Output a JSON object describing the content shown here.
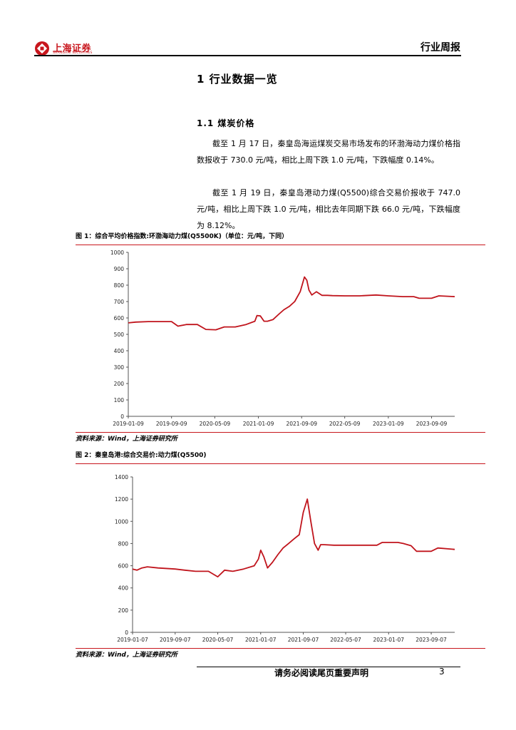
{
  "header": {
    "logo_cn": "上海证券",
    "logo_en": "SHANGHAI SECURITIES",
    "report_type": "行业周报"
  },
  "section": {
    "title": "1  行业数据一览",
    "subtitle": "1.1  煤炭价格"
  },
  "paragraphs": [
    "截至 1 月 17 日，秦皇岛海运煤炭交易市场发布的环渤海动力煤价格指数报收于 730.0 元/吨，相比上周下跌 1.0 元/吨，下跌幅度 0.14%。",
    "截至 1 月 19 日，秦皇岛港动力煤(Q5500)综合交易价报收于 747.0 元/吨，相比上周下跌 1.0 元/吨，相比去年同期下跌 66.0 元/吨，下跌幅度为 8.12%。"
  ],
  "figures": [
    {
      "title": "图 1：综合平均价格指数:环渤海动力煤(Q5500K)（单位：元/吨，下同）",
      "source": "资料来源：Wind，上海证券研究所"
    },
    {
      "title": "图 2：秦皇岛港:综合交易价:动力煤(Q5500)",
      "source": "资料来源：Wind，上海证券研究所"
    }
  ],
  "chart_data": [
    {
      "type": "line",
      "title": "",
      "color": "#c0141c",
      "x_ticks": [
        "2019-01-09",
        "2019-09-09",
        "2020-05-09",
        "2021-01-09",
        "2021-09-09",
        "2022-05-09",
        "2023-01-09",
        "2023-09-09"
      ],
      "y_ticks": [
        "0",
        "100",
        "200",
        "300",
        "400",
        "500",
        "600",
        "700",
        "800",
        "900",
        "1000"
      ],
      "ylim": [
        0,
        1000
      ],
      "xlim": [
        "2019-01-09",
        "2024-01-17"
      ],
      "grid": false,
      "series": [
        {
          "x": [
            "2019-01-09",
            "2019-02-20",
            "2019-05-01",
            "2019-09-09",
            "2019-10-15",
            "2019-12-01",
            "2020-02-01",
            "2020-03-20",
            "2020-05-15",
            "2020-07-01",
            "2020-09-01",
            "2020-11-01",
            "2020-12-20",
            "2021-01-01",
            "2021-01-20",
            "2021-02-10",
            "2021-03-01",
            "2021-04-01",
            "2021-05-01",
            "2021-06-01",
            "2021-07-01",
            "2021-08-01",
            "2021-09-01",
            "2021-09-25",
            "2021-10-08",
            "2021-10-20",
            "2021-11-05",
            "2021-12-01",
            "2022-01-01",
            "2022-02-01",
            "2022-03-01",
            "2022-05-09",
            "2022-08-01",
            "2022-11-01",
            "2023-01-09",
            "2023-04-01",
            "2023-06-01",
            "2023-07-01",
            "2023-09-09",
            "2023-10-20",
            "2024-01-17"
          ],
          "values": [
            570,
            575,
            578,
            578,
            550,
            560,
            560,
            530,
            528,
            545,
            545,
            560,
            580,
            615,
            612,
            580,
            580,
            590,
            620,
            650,
            670,
            700,
            760,
            850,
            830,
            770,
            740,
            760,
            738,
            738,
            736,
            735,
            735,
            740,
            735,
            730,
            730,
            720,
            720,
            735,
            730
          ]
        }
      ]
    },
    {
      "type": "line",
      "title": "",
      "color": "#c0141c",
      "x_ticks": [
        "2019-01-07",
        "2019-09-07",
        "2020-05-07",
        "2021-01-07",
        "2021-09-07",
        "2022-05-07",
        "2023-01-07",
        "2023-09-07"
      ],
      "y_ticks": [
        "0",
        "200",
        "400",
        "600",
        "800",
        "1000",
        "1200",
        "1400"
      ],
      "ylim": [
        0,
        1400
      ],
      "xlim": [
        "2019-01-07",
        "2024-01-19"
      ],
      "grid": false,
      "series": [
        {
          "x": [
            "2019-01-07",
            "2019-02-01",
            "2019-03-01",
            "2019-04-01",
            "2019-06-01",
            "2019-09-07",
            "2019-11-01",
            "2020-01-01",
            "2020-03-15",
            "2020-05-07",
            "2020-06-15",
            "2020-08-01",
            "2020-10-01",
            "2020-12-01",
            "2020-12-25",
            "2021-01-07",
            "2021-01-25",
            "2021-02-15",
            "2021-03-15",
            "2021-04-15",
            "2021-05-15",
            "2021-06-15",
            "2021-07-15",
            "2021-08-15",
            "2021-09-07",
            "2021-09-30",
            "2021-10-20",
            "2021-11-10",
            "2021-12-01",
            "2021-12-15",
            "2022-01-01",
            "2022-03-01",
            "2022-05-07",
            "2022-08-01",
            "2022-11-01",
            "2022-12-01",
            "2023-01-07",
            "2023-03-01",
            "2023-04-01",
            "2023-05-15",
            "2023-06-15",
            "2023-08-01",
            "2023-09-07",
            "2023-10-15",
            "2024-01-19"
          ],
          "values": [
            570,
            560,
            580,
            590,
            580,
            570,
            560,
            550,
            550,
            500,
            560,
            550,
            570,
            600,
            660,
            740,
            680,
            580,
            630,
            700,
            760,
            800,
            840,
            880,
            1080,
            1200,
            1000,
            800,
            740,
            790,
            790,
            785,
            785,
            785,
            785,
            810,
            810,
            810,
            800,
            780,
            730,
            730,
            730,
            760,
            747
          ]
        }
      ]
    }
  ],
  "footer": {
    "notice": "请务必阅读尾页重要声明",
    "page_number": "3"
  }
}
